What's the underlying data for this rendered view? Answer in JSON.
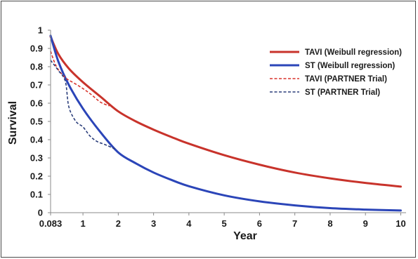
{
  "chart_data": {
    "type": "line",
    "title": "",
    "xlabel": "Year",
    "ylabel": "Survival",
    "xlim": [
      0.083,
      10.15
    ],
    "ylim": [
      0,
      1
    ],
    "x_ticks": [
      0.083,
      1,
      2,
      3,
      4,
      5,
      6,
      7,
      8,
      9,
      10
    ],
    "x_tick_labels": [
      "0.083",
      "1",
      "2",
      "3",
      "4",
      "5",
      "6",
      "7",
      "8",
      "9",
      "10"
    ],
    "y_ticks": [
      0,
      0.1,
      0.2,
      0.3,
      0.4,
      0.5,
      0.6,
      0.7,
      0.8,
      0.9,
      1
    ],
    "y_tick_labels": [
      "0",
      "0.1",
      "0.2",
      "0.3",
      "0.4",
      "0.5",
      "0.6",
      "0.7",
      "0.8",
      "0.9",
      "1"
    ],
    "grid": false,
    "legend_position": "top-right",
    "series": [
      {
        "name": "TAVI (Weibull regression)",
        "color": "#c8332b",
        "style": "solid",
        "x": [
          0.083,
          0.3,
          0.6,
          1,
          1.5,
          2,
          2.5,
          3,
          3.5,
          4,
          5,
          6,
          7,
          8,
          9,
          10
        ],
        "y": [
          0.965,
          0.87,
          0.79,
          0.715,
          0.635,
          0.555,
          0.5,
          0.455,
          0.415,
          0.378,
          0.315,
          0.263,
          0.22,
          0.188,
          0.163,
          0.143
        ]
      },
      {
        "name": "ST (Weibull regression)",
        "color": "#2b45b8",
        "style": "solid",
        "x": [
          0.083,
          0.3,
          0.6,
          1,
          1.5,
          2,
          2.5,
          3,
          3.5,
          4,
          5,
          6,
          7,
          8,
          9,
          10
        ],
        "y": [
          0.97,
          0.83,
          0.7,
          0.57,
          0.44,
          0.33,
          0.27,
          0.22,
          0.18,
          0.145,
          0.095,
          0.062,
          0.04,
          0.025,
          0.017,
          0.012
        ]
      },
      {
        "name": "TAVI (PARTNER Trial)",
        "color": "#d9342b",
        "style": "dashed",
        "x": [
          0.083,
          0.25,
          0.5,
          0.75,
          1,
          1.25,
          1.5,
          1.75
        ],
        "y": [
          0.885,
          0.8,
          0.74,
          0.71,
          0.68,
          0.645,
          0.605,
          0.585
        ]
      },
      {
        "name": "ST (PARTNER Trial)",
        "color": "#2a3d7a",
        "style": "dashed",
        "x": [
          0.083,
          0.3,
          0.5,
          0.6,
          0.8,
          1,
          1.2,
          1.4,
          1.6,
          1.9
        ],
        "y": [
          0.835,
          0.78,
          0.72,
          0.58,
          0.5,
          0.47,
          0.42,
          0.39,
          0.375,
          0.35
        ]
      }
    ]
  }
}
